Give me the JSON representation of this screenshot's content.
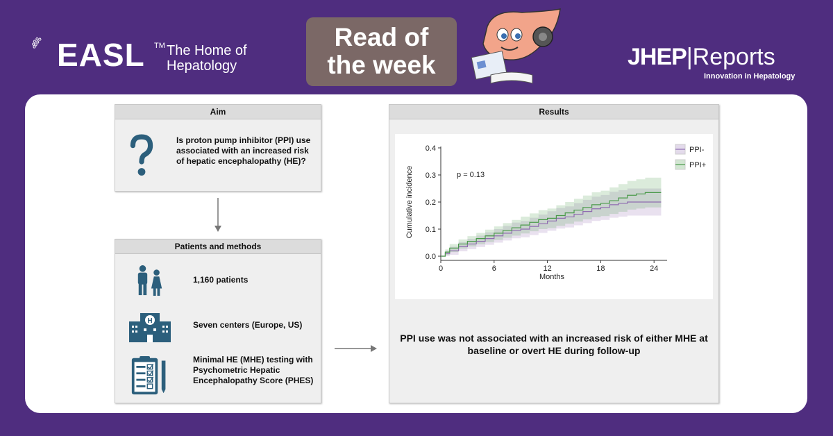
{
  "header": {
    "easl_word": "EASL",
    "easl_tm": "TM",
    "easl_tagline_1": "The Home of",
    "easl_tagline_2": "Hepatology",
    "read_line_1": "Read of",
    "read_line_2": "the week",
    "journal_bold": "JHEP",
    "journal_rest": "Reports",
    "journal_sub": "Innovation in Hepatology"
  },
  "aim": {
    "title": "Aim",
    "text": "Is proton pump inhibitor (PPI) use associated with an increased risk of hepatic encephalopathy (HE)?",
    "icon": "question-mark-icon"
  },
  "methods": {
    "title": "Patients and methods",
    "items": [
      {
        "icon": "people-icon",
        "text": "1,160 patients"
      },
      {
        "icon": "hospital-icon",
        "text": "Seven centers (Europe, US)"
      },
      {
        "icon": "clipboard-icon",
        "text": "Minimal HE (MHE) testing with Psychometric Hepatic Encephalopathy Score (PHES)"
      }
    ]
  },
  "results": {
    "title": "Results",
    "conclusion": "PPI use was not associated with an increased risk of either MHE at baseline or overt HE during follow-up"
  },
  "colors": {
    "background": "#4f2d7f",
    "ppi_minus": "#8f6bb0",
    "ppi_plus": "#4a9a4a"
  },
  "chart_data": {
    "type": "line",
    "title": "",
    "xlabel": "Months",
    "ylabel": "Cumulative incidence",
    "xlim": [
      0,
      25
    ],
    "ylim": [
      0,
      0.4
    ],
    "xticks": [
      0,
      6,
      12,
      18,
      24
    ],
    "yticks": [
      0.0,
      0.1,
      0.2,
      0.3,
      0.4
    ],
    "annotation": "p = 0.13",
    "legend_position": "right",
    "series": [
      {
        "name": "PPI-",
        "color": "#8f6bb0",
        "x": [
          0,
          0.5,
          1,
          2,
          3,
          4,
          5,
          6,
          7,
          8,
          9,
          10,
          11,
          12,
          13,
          14,
          15,
          16,
          17,
          18,
          19,
          20,
          21,
          22,
          23,
          24,
          24.8
        ],
        "y": [
          0,
          0.01,
          0.02,
          0.035,
          0.045,
          0.055,
          0.065,
          0.075,
          0.085,
          0.095,
          0.1,
          0.11,
          0.12,
          0.13,
          0.14,
          0.145,
          0.155,
          0.165,
          0.175,
          0.18,
          0.19,
          0.195,
          0.2,
          0.2,
          0.2,
          0.2,
          0.2
        ],
        "lower": [
          0,
          0.0,
          0.005,
          0.018,
          0.026,
          0.034,
          0.042,
          0.05,
          0.058,
          0.066,
          0.07,
          0.078,
          0.086,
          0.094,
          0.102,
          0.106,
          0.114,
          0.122,
          0.13,
          0.134,
          0.142,
          0.146,
          0.15,
          0.15,
          0.15,
          0.15,
          0.15
        ],
        "upper": [
          0,
          0.02,
          0.035,
          0.052,
          0.064,
          0.076,
          0.088,
          0.1,
          0.112,
          0.124,
          0.13,
          0.142,
          0.154,
          0.166,
          0.178,
          0.184,
          0.196,
          0.208,
          0.22,
          0.226,
          0.238,
          0.244,
          0.25,
          0.25,
          0.25,
          0.25,
          0.25
        ]
      },
      {
        "name": "PPI+",
        "color": "#4a9a4a",
        "x": [
          0,
          0.5,
          1,
          2,
          3,
          4,
          5,
          6,
          7,
          8,
          9,
          10,
          11,
          12,
          13,
          14,
          15,
          16,
          17,
          18,
          19,
          20,
          21,
          22,
          23,
          24,
          24.8
        ],
        "y": [
          0,
          0.015,
          0.03,
          0.045,
          0.055,
          0.065,
          0.075,
          0.085,
          0.095,
          0.105,
          0.115,
          0.125,
          0.135,
          0.14,
          0.15,
          0.16,
          0.17,
          0.18,
          0.19,
          0.195,
          0.205,
          0.215,
          0.225,
          0.23,
          0.235,
          0.235,
          0.235
        ],
        "lower": [
          0,
          0.005,
          0.015,
          0.028,
          0.036,
          0.044,
          0.052,
          0.06,
          0.068,
          0.076,
          0.084,
          0.092,
          0.1,
          0.104,
          0.112,
          0.12,
          0.128,
          0.136,
          0.144,
          0.148,
          0.156,
          0.164,
          0.172,
          0.176,
          0.18,
          0.18,
          0.18
        ],
        "upper": [
          0,
          0.025,
          0.045,
          0.062,
          0.074,
          0.086,
          0.098,
          0.11,
          0.122,
          0.134,
          0.146,
          0.158,
          0.17,
          0.176,
          0.188,
          0.2,
          0.212,
          0.224,
          0.236,
          0.242,
          0.254,
          0.266,
          0.278,
          0.284,
          0.29,
          0.29,
          0.29
        ]
      }
    ]
  }
}
